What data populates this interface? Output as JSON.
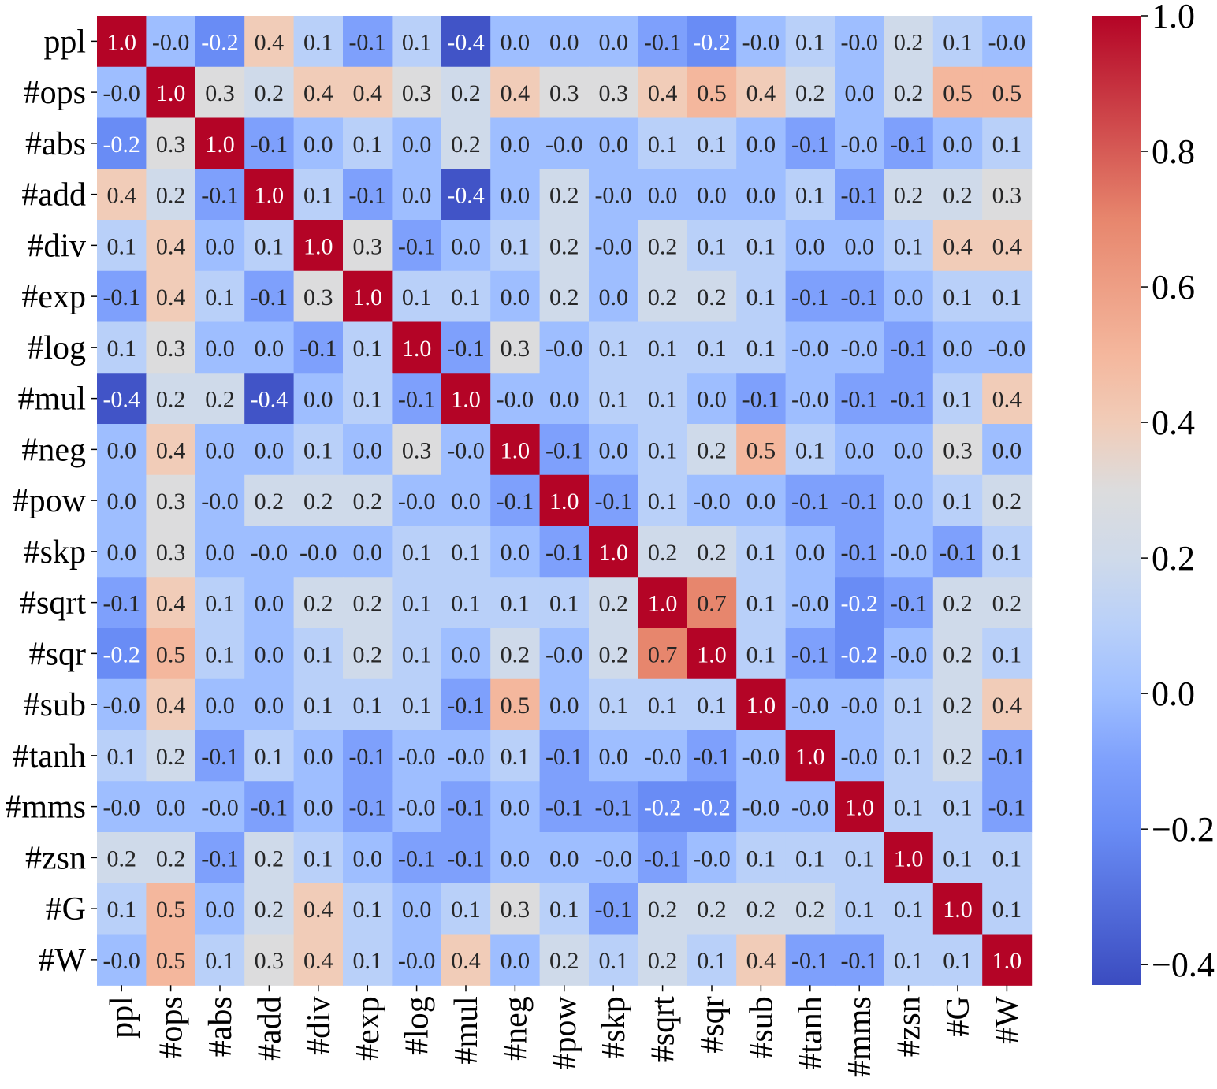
{
  "chart_data": {
    "type": "heatmap",
    "title": "",
    "xlabel": "",
    "ylabel": "",
    "colormap": "coolwarm",
    "value_range": [
      -0.43,
      1.0
    ],
    "colorbar_ticks": [
      "1.0",
      "0.8",
      "0.6",
      "0.4",
      "0.2",
      "0.0",
      "−0.2",
      "−0.4"
    ],
    "colorbar_tick_values": [
      1.0,
      0.8,
      0.6,
      0.4,
      0.2,
      0.0,
      -0.2,
      -0.4
    ],
    "labels": [
      "ppl",
      "#ops",
      "#abs",
      "#add",
      "#div",
      "#exp",
      "#log",
      "#mul",
      "#neg",
      "#pow",
      "#skp",
      "#sqrt",
      "#sqr",
      "#sub",
      "#tanh",
      "#mms",
      "#zsn",
      "#G",
      "#W"
    ],
    "values": [
      [
        1.0,
        -0.0,
        -0.2,
        0.4,
        0.1,
        -0.1,
        0.1,
        -0.4,
        0.0,
        0.0,
        0.0,
        -0.1,
        -0.2,
        -0.0,
        0.1,
        -0.0,
        0.2,
        0.1,
        -0.0
      ],
      [
        -0.0,
        1.0,
        0.3,
        0.2,
        0.4,
        0.4,
        0.3,
        0.2,
        0.4,
        0.3,
        0.3,
        0.4,
        0.5,
        0.4,
        0.2,
        0.0,
        0.2,
        0.5,
        0.5
      ],
      [
        -0.2,
        0.3,
        1.0,
        -0.1,
        0.0,
        0.1,
        0.0,
        0.2,
        0.0,
        -0.0,
        0.0,
        0.1,
        0.1,
        0.0,
        -0.1,
        -0.0,
        -0.1,
        0.0,
        0.1
      ],
      [
        0.4,
        0.2,
        -0.1,
        1.0,
        0.1,
        -0.1,
        0.0,
        -0.4,
        0.0,
        0.2,
        -0.0,
        0.0,
        0.0,
        0.0,
        0.1,
        -0.1,
        0.2,
        0.2,
        0.3
      ],
      [
        0.1,
        0.4,
        0.0,
        0.1,
        1.0,
        0.3,
        -0.1,
        0.0,
        0.1,
        0.2,
        -0.0,
        0.2,
        0.1,
        0.1,
        0.0,
        0.0,
        0.1,
        0.4,
        0.4
      ],
      [
        -0.1,
        0.4,
        0.1,
        -0.1,
        0.3,
        1.0,
        0.1,
        0.1,
        0.0,
        0.2,
        0.0,
        0.2,
        0.2,
        0.1,
        -0.1,
        -0.1,
        0.0,
        0.1,
        0.1
      ],
      [
        0.1,
        0.3,
        0.0,
        0.0,
        -0.1,
        0.1,
        1.0,
        -0.1,
        0.3,
        -0.0,
        0.1,
        0.1,
        0.1,
        0.1,
        -0.0,
        -0.0,
        -0.1,
        0.0,
        -0.0
      ],
      [
        -0.4,
        0.2,
        0.2,
        -0.4,
        0.0,
        0.1,
        -0.1,
        1.0,
        -0.0,
        0.0,
        0.1,
        0.1,
        0.0,
        -0.1,
        -0.0,
        -0.1,
        -0.1,
        0.1,
        0.4
      ],
      [
        0.0,
        0.4,
        0.0,
        0.0,
        0.1,
        0.0,
        0.3,
        -0.0,
        1.0,
        -0.1,
        0.0,
        0.1,
        0.2,
        0.5,
        0.1,
        0.0,
        0.0,
        0.3,
        0.0
      ],
      [
        0.0,
        0.3,
        -0.0,
        0.2,
        0.2,
        0.2,
        -0.0,
        0.0,
        -0.1,
        1.0,
        -0.1,
        0.1,
        -0.0,
        0.0,
        -0.1,
        -0.1,
        0.0,
        0.1,
        0.2
      ],
      [
        0.0,
        0.3,
        0.0,
        -0.0,
        -0.0,
        0.0,
        0.1,
        0.1,
        0.0,
        -0.1,
        1.0,
        0.2,
        0.2,
        0.1,
        0.0,
        -0.1,
        -0.0,
        -0.1,
        0.1
      ],
      [
        -0.1,
        0.4,
        0.1,
        0.0,
        0.2,
        0.2,
        0.1,
        0.1,
        0.1,
        0.1,
        0.2,
        1.0,
        0.7,
        0.1,
        -0.0,
        -0.2,
        -0.1,
        0.2,
        0.2
      ],
      [
        -0.2,
        0.5,
        0.1,
        0.0,
        0.1,
        0.2,
        0.1,
        0.0,
        0.2,
        -0.0,
        0.2,
        0.7,
        1.0,
        0.1,
        -0.1,
        -0.2,
        -0.0,
        0.2,
        0.1
      ],
      [
        -0.0,
        0.4,
        0.0,
        0.0,
        0.1,
        0.1,
        0.1,
        -0.1,
        0.5,
        0.0,
        0.1,
        0.1,
        0.1,
        1.0,
        -0.0,
        -0.0,
        0.1,
        0.2,
        0.4
      ],
      [
        0.1,
        0.2,
        -0.1,
        0.1,
        0.0,
        -0.1,
        -0.0,
        -0.0,
        0.1,
        -0.1,
        0.0,
        -0.0,
        -0.1,
        -0.0,
        1.0,
        -0.0,
        0.1,
        0.2,
        -0.1
      ],
      [
        -0.0,
        0.0,
        -0.0,
        -0.1,
        0.0,
        -0.1,
        -0.0,
        -0.1,
        0.0,
        -0.1,
        -0.1,
        -0.2,
        -0.2,
        -0.0,
        -0.0,
        1.0,
        0.1,
        0.1,
        -0.1
      ],
      [
        0.2,
        0.2,
        -0.1,
        0.2,
        0.1,
        0.0,
        -0.1,
        -0.1,
        0.0,
        0.0,
        -0.0,
        -0.1,
        -0.0,
        0.1,
        0.1,
        0.1,
        1.0,
        0.1,
        0.1
      ],
      [
        0.1,
        0.5,
        0.0,
        0.2,
        0.4,
        0.1,
        0.0,
        0.1,
        0.3,
        0.1,
        -0.1,
        0.2,
        0.2,
        0.2,
        0.2,
        0.1,
        0.1,
        1.0,
        0.1
      ],
      [
        -0.0,
        0.5,
        0.1,
        0.3,
        0.4,
        0.1,
        -0.0,
        0.4,
        0.0,
        0.2,
        0.1,
        0.2,
        0.1,
        0.4,
        -0.1,
        -0.1,
        0.1,
        0.1,
        1.0
      ]
    ]
  }
}
